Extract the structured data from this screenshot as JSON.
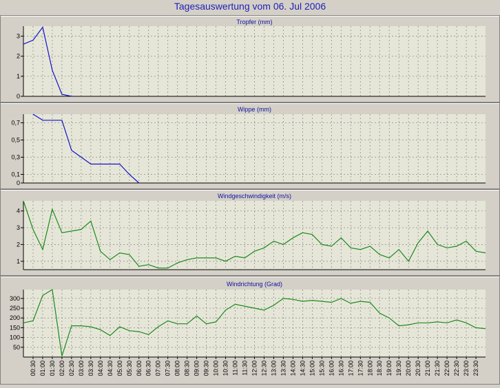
{
  "title": "Tagesauswertung vom 06. Jul 2006",
  "colors": {
    "rain": "#1010c8",
    "wind": "#1a8a1a",
    "background": "#d4d0c8",
    "plot": "#e6e6d8"
  },
  "time_labels": [
    "00:30",
    "01:00",
    "01:30",
    "02:00",
    "02:30",
    "03:00",
    "03:30",
    "04:00",
    "04:30",
    "05:00",
    "05:30",
    "06:00",
    "06:30",
    "07:00",
    "07:30",
    "08:00",
    "08:30",
    "09:00",
    "09:30",
    "10:00",
    "10:30",
    "11:00",
    "11:30",
    "12:00",
    "12:30",
    "13:00",
    "13:30",
    "14:00",
    "14:30",
    "15:00",
    "15:30",
    "16:00",
    "16:30",
    "17:00",
    "17:30",
    "18:00",
    "18:30",
    "19:00",
    "19:30",
    "20:00",
    "20:30",
    "21:00",
    "21:30",
    "22:00",
    "22:30",
    "23:00",
    "23:30"
  ],
  "chart_data": [
    {
      "type": "line",
      "title": "Tropfer (mm)",
      "color": "rain",
      "x": [
        "00:00",
        "00:30",
        "01:00",
        "01:30",
        "02:00",
        "02:30"
      ],
      "values": [
        2.6,
        2.8,
        3.45,
        1.3,
        0.1,
        0
      ],
      "ylim": [
        0,
        3.5
      ],
      "yticks": [
        0,
        1,
        2,
        3
      ],
      "ytick_labels": [
        "0",
        "1",
        "2",
        "3"
      ],
      "grid": true
    },
    {
      "type": "line",
      "title": "Wippe (mm)",
      "color": "rain",
      "x": [
        "00:30",
        "01:00",
        "01:30",
        "02:00",
        "02:30",
        "03:00",
        "03:30",
        "04:00",
        "04:30",
        "05:00",
        "05:30",
        "06:00"
      ],
      "values": [
        0.8,
        0.73,
        0.73,
        0.73,
        0.38,
        0.3,
        0.22,
        0.22,
        0.22,
        0.22,
        0.1,
        0
      ],
      "ylim": [
        0,
        0.8
      ],
      "yticks": [
        0,
        0.1,
        0.3,
        0.5,
        0.7
      ],
      "ytick_labels": [
        "0",
        "0,1",
        "0,3",
        "0,5",
        "0,7"
      ],
      "grid": true
    },
    {
      "type": "line",
      "title": "Windgeschwindigkeit (m/s)",
      "color": "wind",
      "x": [
        "00:00",
        "00:30",
        "01:00",
        "01:30",
        "02:00",
        "02:30",
        "03:00",
        "03:30",
        "04:00",
        "04:30",
        "05:00",
        "05:30",
        "06:00",
        "06:30",
        "07:00",
        "07:30",
        "08:00",
        "08:30",
        "09:00",
        "09:30",
        "10:00",
        "10:30",
        "11:00",
        "11:30",
        "12:00",
        "12:30",
        "13:00",
        "13:30",
        "14:00",
        "14:30",
        "15:00",
        "15:30",
        "16:00",
        "16:30",
        "17:00",
        "17:30",
        "18:00",
        "18:30",
        "19:00",
        "19:30",
        "20:00",
        "20:30",
        "21:00",
        "21:30",
        "22:00",
        "22:30",
        "23:00",
        "23:30",
        "24:00"
      ],
      "values": [
        4.6,
        2.9,
        1.7,
        4.1,
        2.7,
        2.8,
        2.9,
        3.4,
        1.6,
        1.1,
        1.5,
        1.4,
        0.7,
        0.8,
        0.6,
        0.6,
        0.9,
        1.1,
        1.2,
        1.2,
        1.2,
        1.0,
        1.3,
        1.2,
        1.6,
        1.8,
        2.2,
        2.0,
        2.4,
        2.7,
        2.6,
        2.0,
        1.9,
        2.4,
        1.8,
        1.7,
        1.9,
        1.4,
        1.2,
        1.7,
        1.0,
        2.1,
        2.8,
        2.0,
        1.8,
        1.9,
        2.2,
        1.6,
        1.5
      ],
      "ylim": [
        0.5,
        4.6
      ],
      "yticks": [
        1,
        2,
        3,
        4
      ],
      "ytick_labels": [
        "1",
        "2",
        "3",
        "4"
      ],
      "grid": true
    },
    {
      "type": "line",
      "title": "Windrichtung (Grad)",
      "color": "wind",
      "x": [
        "00:00",
        "00:30",
        "01:00",
        "01:30",
        "02:00",
        "02:30",
        "03:00",
        "03:30",
        "04:00",
        "04:30",
        "05:00",
        "05:30",
        "06:00",
        "06:30",
        "07:00",
        "07:30",
        "08:00",
        "08:30",
        "09:00",
        "09:30",
        "10:00",
        "10:30",
        "11:00",
        "11:30",
        "12:00",
        "12:30",
        "13:00",
        "13:30",
        "14:00",
        "14:30",
        "15:00",
        "15:30",
        "16:00",
        "16:30",
        "17:00",
        "17:30",
        "18:00",
        "18:30",
        "19:00",
        "19:30",
        "20:00",
        "20:30",
        "21:00",
        "21:30",
        "22:00",
        "22:30",
        "23:00",
        "23:30",
        "24:00"
      ],
      "values": [
        175,
        185,
        315,
        345,
        5,
        160,
        160,
        155,
        140,
        110,
        155,
        135,
        130,
        115,
        155,
        185,
        170,
        170,
        210,
        170,
        180,
        240,
        270,
        260,
        250,
        240,
        265,
        300,
        295,
        285,
        290,
        285,
        280,
        300,
        275,
        285,
        280,
        225,
        200,
        160,
        165,
        175,
        175,
        180,
        175,
        190,
        175,
        150,
        145
      ],
      "ylim": [
        0,
        345
      ],
      "yticks": [
        50,
        100,
        150,
        200,
        250,
        300
      ],
      "ytick_labels": [
        "50",
        "100",
        "150",
        "200",
        "250",
        "300"
      ],
      "grid": true
    }
  ]
}
